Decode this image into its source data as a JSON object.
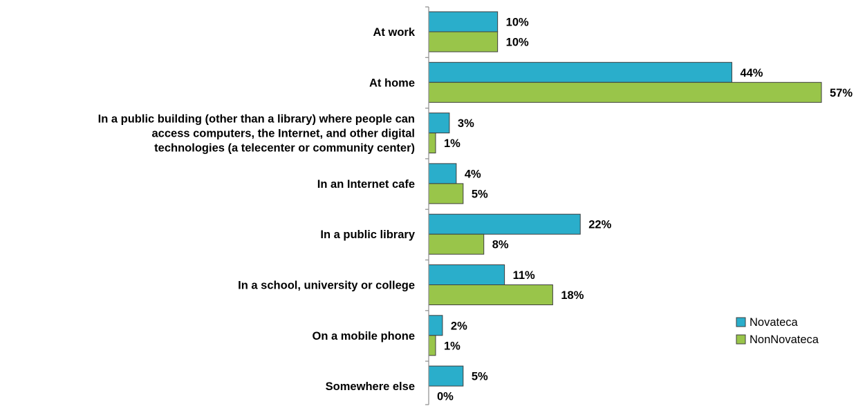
{
  "chart_data": {
    "type": "bar",
    "orientation": "horizontal",
    "categories": [
      [
        "At work"
      ],
      [
        "At home"
      ],
      [
        "In a public building (other than a library) where people can",
        "access computers, the Internet, and other digital",
        "technologies (a telecenter or community center)"
      ],
      [
        "In an Internet cafe"
      ],
      [
        "In a public library"
      ],
      [
        "In a school, university or college"
      ],
      [
        "On a mobile phone"
      ],
      [
        "Somewhere else"
      ]
    ],
    "series": [
      {
        "name": "Novateca",
        "color": "#2aaecb",
        "values": [
          10,
          44,
          3,
          4,
          22,
          11,
          2,
          5
        ],
        "labels": [
          "10%",
          "44%",
          "3%",
          "4%",
          "22%",
          "11%",
          "2%",
          "5%"
        ]
      },
      {
        "name": "NonNovateca",
        "color": "#99c54a",
        "values": [
          10,
          57,
          1,
          5,
          8,
          18,
          1,
          0
        ],
        "labels": [
          "10%",
          "57%",
          "1%",
          "5%",
          "8%",
          "18%",
          "1%",
          "0%"
        ]
      }
    ],
    "xlim": [
      0,
      57
    ],
    "grid": false,
    "legend_position": "right"
  }
}
